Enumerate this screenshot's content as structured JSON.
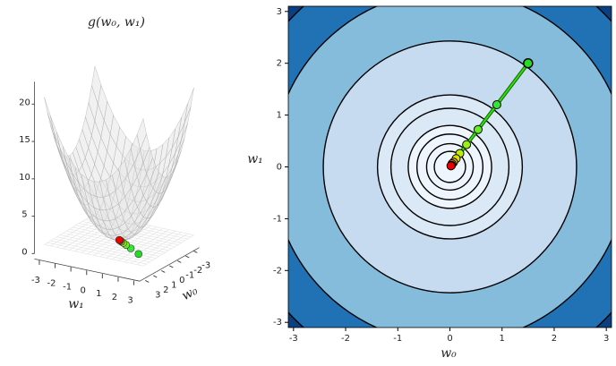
{
  "chart_data": [
    {
      "type": "surface3d",
      "title": "g(w₀, w₁)",
      "xlabel": "w₀",
      "ylabel": "w₁",
      "xlim": [
        -3.14,
        3.14
      ],
      "ylim": [
        -3.14,
        3.14
      ],
      "zlim": [
        0,
        23
      ],
      "xticks": [
        -3,
        -2,
        -1,
        0,
        1,
        2,
        3
      ],
      "yticks": [
        -3,
        -2,
        -1,
        0,
        1,
        2,
        3
      ],
      "zticks": [
        0,
        5,
        10,
        15,
        20
      ],
      "surface_color": "#e6e6e6",
      "edge_color": "#a8a8a8"
    },
    {
      "type": "contour",
      "xlabel": "w₀",
      "ylabel": "w₁",
      "xlim": [
        -3.1,
        3.1
      ],
      "ylim": [
        -3.1,
        3.1
      ],
      "xticks": [
        -3,
        -2,
        -1,
        0,
        1,
        2,
        3
      ],
      "yticks": [
        -3,
        -2,
        -1,
        0,
        1,
        2,
        3
      ],
      "levels": [
        0.09,
        0.2,
        0.4,
        0.64,
        1.28,
        1.93,
        5.9,
        11.6,
        17.5
      ],
      "fill_levels": [
        0.64,
        1.93,
        5.9,
        11.6,
        17.5
      ],
      "fill_colors": [
        "#eef5fc",
        "#dbe9f6",
        "#c6dbef",
        "#85bcdc",
        "#2171b5",
        "#0b3f80"
      ],
      "path": {
        "x": [
          1.5,
          0.9,
          0.54,
          0.32,
          0.19,
          0.12,
          0.07,
          0.04,
          0.03,
          0.02
        ],
        "y": [
          2,
          1.2,
          0.72,
          0.43,
          0.26,
          0.16,
          0.09,
          0.06,
          0.03,
          0.02
        ],
        "colors": [
          "#22dd22",
          "#33e633",
          "#66ee22",
          "#99f011",
          "#bbee00",
          "#dddd00",
          "#eebb00",
          "#ee8800",
          "#ee4400",
          "#ee0000"
        ],
        "line_color": "#33dd00"
      }
    }
  ]
}
